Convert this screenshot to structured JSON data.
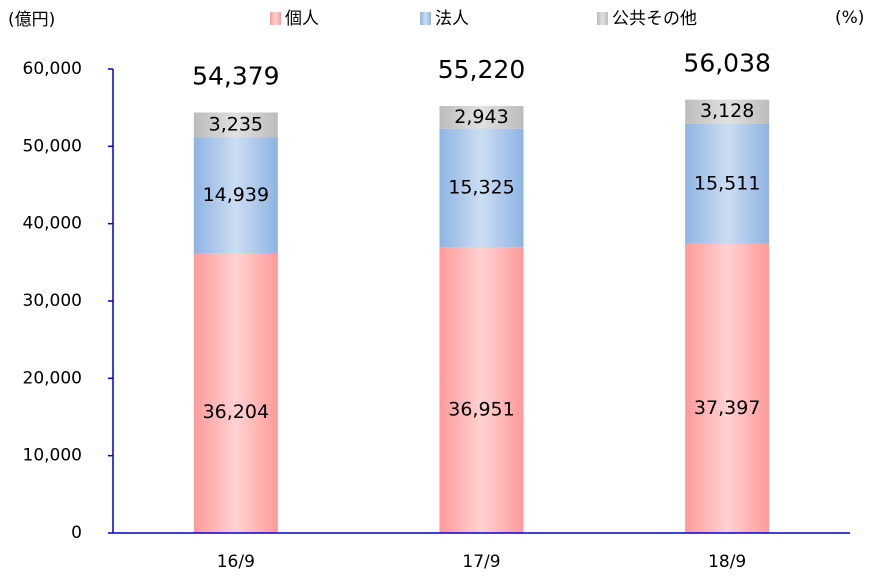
{
  "chart_data": {
    "type": "stacked_bar",
    "y_unit": "(億円)",
    "right_unit": "(%)",
    "categories": [
      "16/9",
      "17/9",
      "18/9"
    ],
    "series": [
      {
        "name": "個人",
        "color": "#ff9a9a",
        "values": [
          36204,
          36951,
          37397
        ],
        "value_labels": [
          "36,204",
          "36,951",
          "37,397"
        ]
      },
      {
        "name": "法人",
        "color": "#8eb4e3",
        "values": [
          14939,
          15325,
          15511
        ],
        "value_labels": [
          "14,939",
          "15,325",
          "15,511"
        ]
      },
      {
        "name": "公共その他",
        "color": "#bcbcbc",
        "values": [
          3235,
          2943,
          3128
        ],
        "value_labels": [
          "3,235",
          "2,943",
          "3,128"
        ]
      }
    ],
    "totals": [
      54379,
      55220,
      56038
    ],
    "total_labels": [
      "54,379",
      "55,220",
      "56,038"
    ],
    "ylim": [
      0,
      60000
    ],
    "yticks": [
      0,
      {
        "value": 10000,
        "label": "10,000"
      },
      {
        "value": 20000,
        "label": "20,000"
      },
      {
        "value": 30000,
        "label": "30,000"
      },
      {
        "value": 40000,
        "label": "40,000"
      },
      {
        "value": 50000,
        "label": "50,000"
      },
      {
        "value": 60000,
        "label": "60,000"
      }
    ],
    "axis_color": "#0000cc",
    "grid": false,
    "legend": "top"
  }
}
